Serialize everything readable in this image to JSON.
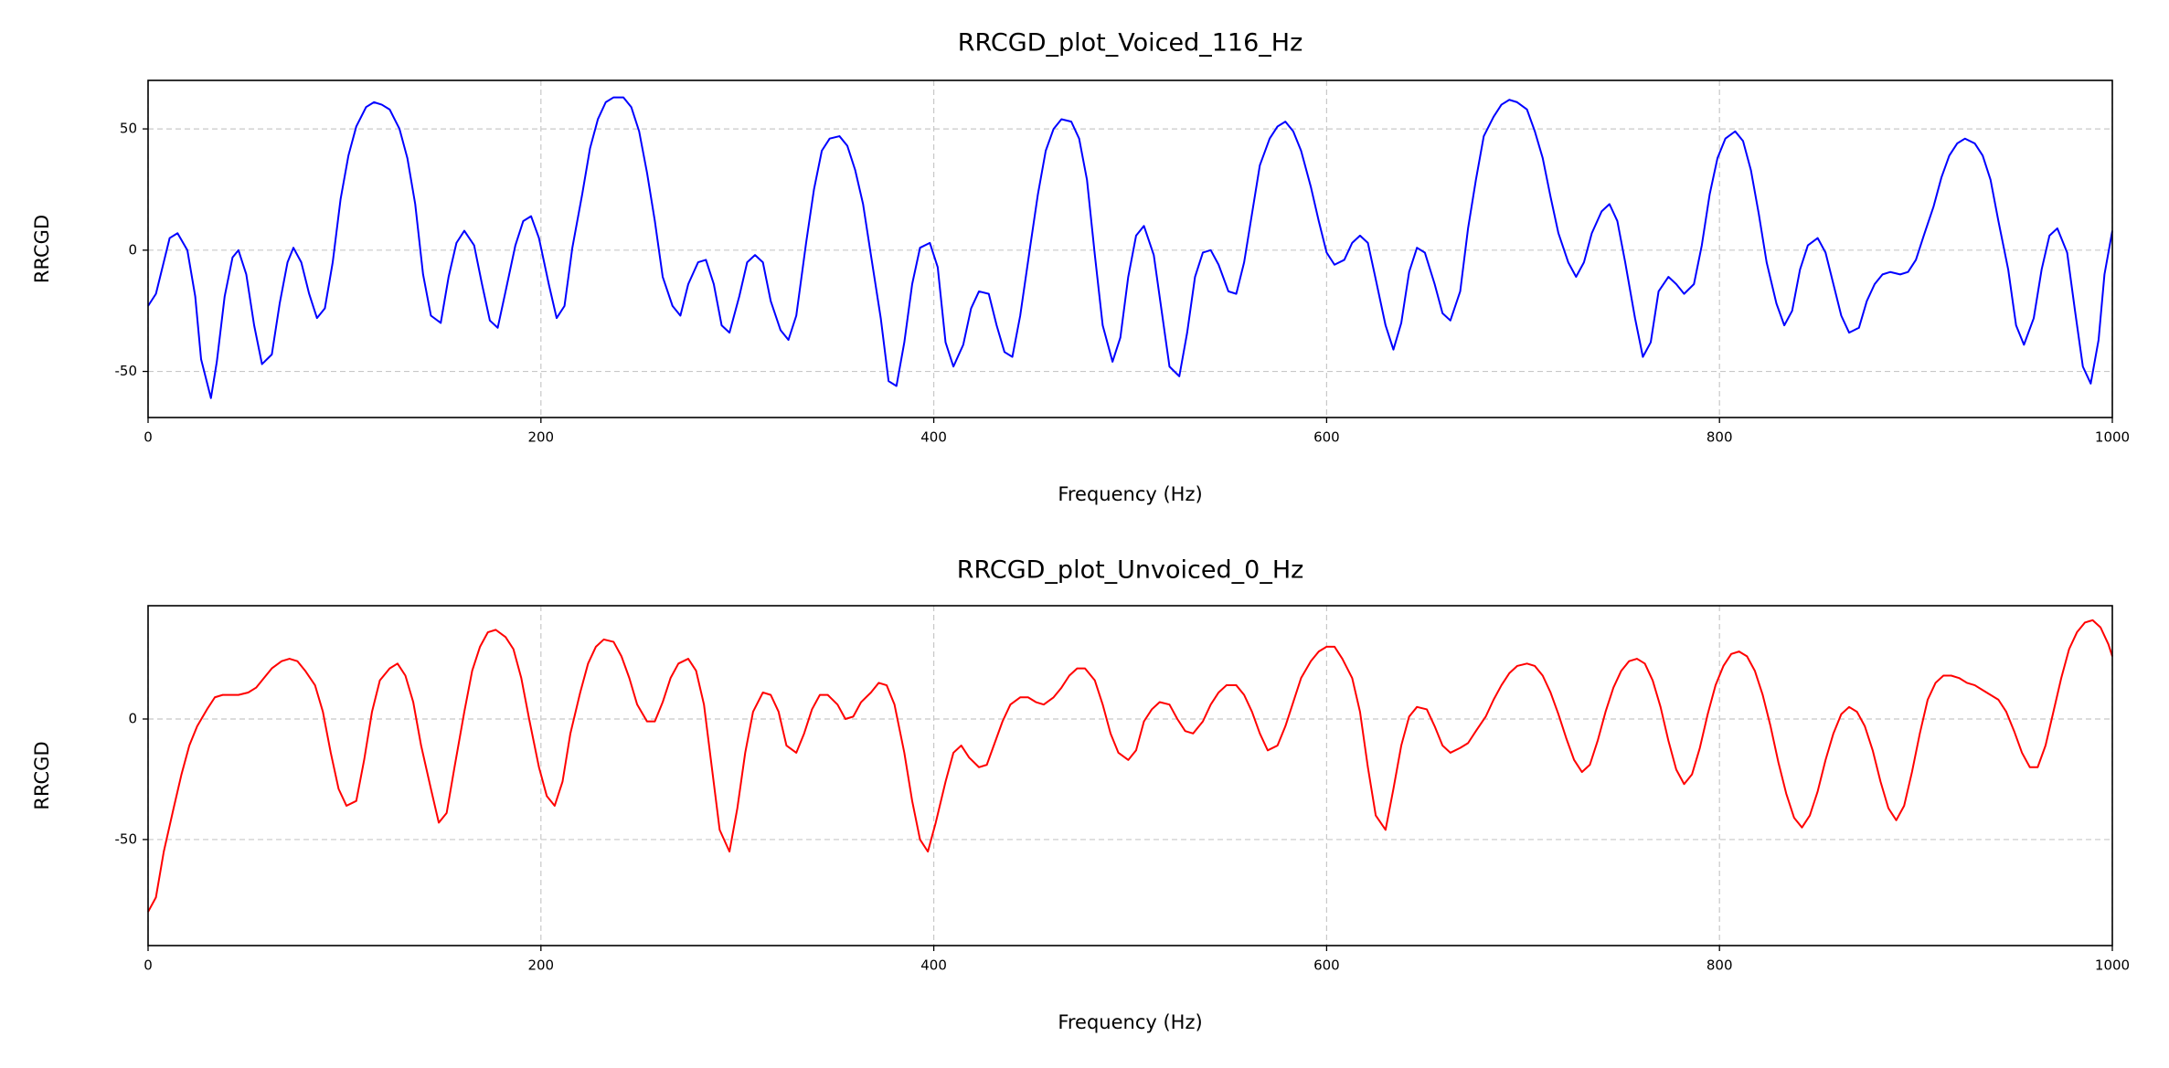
{
  "chart_data": [
    {
      "type": "line",
      "title": "RRCGD_plot_Voiced_116_Hz",
      "xlabel": "Frequency (Hz)",
      "ylabel": "RRCGD",
      "color": "#0000ff",
      "grid": true,
      "xlim": [
        0,
        1000
      ],
      "ylim": [
        -69,
        70
      ],
      "xticks": [
        0,
        200,
        400,
        600,
        800,
        1000
      ],
      "yticks": [
        -50,
        0,
        50
      ],
      "x": [
        0,
        4,
        11,
        15,
        20,
        24,
        27,
        32,
        35,
        39,
        43,
        46,
        50,
        54,
        58,
        63,
        67,
        71,
        74,
        78,
        82,
        86,
        90,
        94,
        98,
        102,
        106,
        111,
        115,
        119,
        123,
        128,
        132,
        136,
        140,
        144,
        149,
        153,
        157,
        161,
        166,
        170,
        174,
        178,
        182,
        187,
        191,
        195,
        199,
        204,
        208,
        212,
        216,
        221,
        225,
        229,
        233,
        237,
        242,
        246,
        250,
        254,
        258,
        262,
        267,
        271,
        275,
        280,
        284,
        288,
        292,
        296,
        301,
        305,
        309,
        313,
        317,
        322,
        326,
        330,
        335,
        339,
        343,
        347,
        352,
        356,
        360,
        364,
        368,
        373,
        377,
        381,
        385,
        389,
        393,
        398,
        402,
        406,
        410,
        415,
        419,
        423,
        428,
        432,
        436,
        440,
        444,
        449,
        453,
        457,
        461,
        465,
        470,
        474,
        478,
        482,
        486,
        491,
        495,
        499,
        503,
        507,
        512,
        516,
        520,
        525,
        529,
        533,
        537,
        541,
        545,
        550,
        554,
        558,
        562,
        566,
        571,
        575,
        579,
        583,
        587,
        592,
        596,
        600,
        604,
        609,
        613,
        617,
        621,
        625,
        630,
        634,
        638,
        642,
        646,
        650,
        655,
        659,
        663,
        668,
        672,
        676,
        680,
        685,
        689,
        693,
        697,
        702,
        706,
        710,
        714,
        718,
        723,
        727,
        731,
        735,
        740,
        744,
        748,
        752,
        757,
        761,
        765,
        769,
        774,
        778,
        782,
        787,
        791,
        795,
        799,
        803,
        808,
        812,
        816,
        820,
        824,
        829,
        833,
        837,
        841,
        845,
        850,
        854,
        858,
        862,
        866,
        871,
        875,
        879,
        883,
        887,
        892,
        896,
        900,
        904,
        909,
        913,
        917,
        921,
        925,
        930,
        934,
        938,
        942,
        947,
        951,
        955,
        960,
        964,
        968,
        972,
        977,
        981,
        985,
        989,
        993,
        996,
        1000
      ],
      "values": [
        -23,
        -18,
        5,
        7,
        0,
        -19,
        -45,
        -61,
        -46,
        -19,
        -3,
        0,
        -10,
        -31,
        -47,
        -43,
        -22,
        -5,
        1,
        -5,
        -18,
        -28,
        -24,
        -5,
        21,
        39,
        51,
        59,
        61,
        60,
        58,
        50,
        38,
        19,
        -10,
        -27,
        -30,
        -11,
        3,
        8,
        2,
        -14,
        -29,
        -32,
        -17,
        2,
        12,
        14,
        5,
        -14,
        -28,
        -23,
        1,
        23,
        42,
        54,
        61,
        63,
        63,
        59,
        49,
        32,
        12,
        -11,
        -23,
        -27,
        -14,
        -5,
        -4,
        -14,
        -31,
        -34,
        -19,
        -5,
        -2,
        -5,
        -21,
        -33,
        -37,
        -27,
        3,
        25,
        41,
        46,
        47,
        43,
        33,
        19,
        -2,
        -28,
        -54,
        -56,
        -38,
        -14,
        1,
        3,
        -7,
        -38,
        -48,
        -39,
        -24,
        -17,
        -18,
        -31,
        -42,
        -44,
        -27,
        1,
        23,
        41,
        50,
        54,
        53,
        46,
        29,
        -2,
        -31,
        -46,
        -36,
        -11,
        6,
        10,
        -2,
        -25,
        -48,
        -52,
        -34,
        -11,
        -1,
        0,
        -6,
        -17,
        -18,
        -5,
        15,
        35,
        46,
        51,
        53,
        49,
        41,
        26,
        12,
        -1,
        -6,
        -4,
        3,
        6,
        3,
        -12,
        -31,
        -41,
        -30,
        -9,
        1,
        -1,
        -14,
        -26,
        -29,
        -17,
        9,
        29,
        47,
        55,
        60,
        62,
        61,
        58,
        49,
        38,
        22,
        7,
        -5,
        -11,
        -5,
        7,
        16,
        19,
        12,
        -5,
        -28,
        -44,
        -38,
        -17,
        -11,
        -14,
        -18,
        -14,
        2,
        23,
        38,
        46,
        49,
        45,
        33,
        15,
        -5,
        -22,
        -31,
        -25,
        -8,
        2,
        5,
        -1,
        -14,
        -27,
        -34,
        -32,
        -21,
        -14,
        -10,
        -9,
        -10,
        -9,
        -4,
        6,
        18,
        30,
        39,
        44,
        46,
        44,
        39,
        29,
        12,
        -8,
        -31,
        -39,
        -28,
        -8,
        6,
        9,
        -1,
        -25,
        -48,
        -55,
        -37,
        -10,
        8
      ]
    },
    {
      "type": "line",
      "title": "RRCGD_plot_Unvoiced_0_Hz",
      "xlabel": "Frequency (Hz)",
      "ylabel": "RRCGD",
      "color": "#ff0000",
      "grid": true,
      "xlim": [
        0,
        1000
      ],
      "ylim": [
        -94,
        47
      ],
      "xticks": [
        0,
        200,
        400,
        600,
        800,
        1000
      ],
      "yticks": [
        -50,
        0
      ],
      "x": [
        0,
        4,
        8,
        13,
        17,
        21,
        25,
        30,
        34,
        38,
        42,
        46,
        51,
        55,
        59,
        63,
        68,
        72,
        76,
        80,
        85,
        89,
        93,
        97,
        101,
        106,
        110,
        114,
        118,
        123,
        127,
        131,
        135,
        139,
        144,
        148,
        152,
        156,
        161,
        165,
        169,
        173,
        177,
        182,
        186,
        190,
        194,
        199,
        203,
        207,
        211,
        215,
        220,
        224,
        228,
        232,
        237,
        241,
        245,
        249,
        254,
        258,
        262,
        266,
        270,
        275,
        279,
        283,
        287,
        291,
        296,
        300,
        304,
        308,
        313,
        317,
        321,
        325,
        330,
        334,
        338,
        342,
        346,
        351,
        355,
        359,
        363,
        368,
        372,
        376,
        380,
        385,
        389,
        393,
        397,
        401,
        406,
        410,
        414,
        418,
        423,
        427,
        431,
        435,
        439,
        444,
        448,
        452,
        456,
        461,
        465,
        469,
        473,
        477,
        482,
        486,
        490,
        494,
        499,
        503,
        507,
        511,
        515,
        520,
        524,
        528,
        532,
        537,
        541,
        545,
        549,
        554,
        558,
        562,
        566,
        570,
        575,
        579,
        583,
        587,
        592,
        596,
        600,
        604,
        608,
        613,
        617,
        621,
        625,
        630,
        634,
        638,
        642,
        646,
        651,
        655,
        659,
        663,
        668,
        672,
        676,
        681,
        685,
        689,
        693,
        697,
        702,
        706,
        710,
        714,
        718,
        722,
        726,
        730,
        734,
        738,
        742,
        746,
        750,
        754,
        758,
        762,
        766,
        770,
        774,
        778,
        782,
        786,
        790,
        794,
        798,
        802,
        806,
        810,
        814,
        818,
        822,
        826,
        830,
        834,
        838,
        842,
        846,
        850,
        854,
        858,
        862,
        866,
        870,
        874,
        878,
        882,
        886,
        890,
        894,
        898,
        902,
        906,
        910,
        914,
        918,
        922,
        926,
        930,
        934,
        938,
        942,
        946,
        950,
        954,
        958,
        962,
        966,
        970,
        974,
        978,
        982,
        986,
        990,
        994,
        998,
        1000
      ],
      "values": [
        -80,
        -74,
        -55,
        -37,
        -23,
        -11,
        -3,
        4,
        9,
        10,
        10,
        10,
        11,
        13,
        17,
        21,
        24,
        25,
        24,
        20,
        14,
        3,
        -14,
        -29,
        -36,
        -34,
        -17,
        3,
        16,
        21,
        23,
        18,
        7,
        -11,
        -29,
        -43,
        -39,
        -20,
        3,
        20,
        30,
        36,
        37,
        34,
        29,
        17,
        0,
        -20,
        -32,
        -36,
        -26,
        -6,
        11,
        23,
        30,
        33,
        32,
        26,
        17,
        6,
        -1,
        -1,
        7,
        17,
        23,
        25,
        20,
        6,
        -20,
        -46,
        -55,
        -37,
        -14,
        3,
        11,
        10,
        3,
        -11,
        -14,
        -6,
        4,
        10,
        10,
        6,
        0,
        1,
        7,
        11,
        15,
        14,
        6,
        -14,
        -34,
        -50,
        -55,
        -43,
        -26,
        -14,
        -11,
        -16,
        -20,
        -19,
        -10,
        -1,
        6,
        9,
        9,
        7,
        6,
        9,
        13,
        18,
        21,
        21,
        16,
        6,
        -6,
        -14,
        -17,
        -13,
        -1,
        4,
        7,
        6,
        0,
        -5,
        -6,
        -1,
        6,
        11,
        14,
        14,
        10,
        3,
        -6,
        -13,
        -11,
        -3,
        7,
        17,
        24,
        28,
        30,
        30,
        25,
        17,
        3,
        -20,
        -40,
        -46,
        -29,
        -11,
        1,
        5,
        4,
        -3,
        -11,
        -14,
        -12,
        -10,
        -5,
        1,
        8,
        14,
        19,
        22,
        23,
        22,
        18,
        11,
        2,
        -8,
        -17,
        -22,
        -19,
        -9,
        3,
        13,
        20,
        24,
        25,
        23,
        16,
        5,
        -9,
        -21,
        -27,
        -23,
        -12,
        2,
        14,
        22,
        27,
        28,
        26,
        20,
        10,
        -3,
        -18,
        -31,
        -41,
        -45,
        -40,
        -30,
        -17,
        -6,
        2,
        5,
        3,
        -3,
        -13,
        -26,
        -37,
        -42,
        -36,
        -22,
        -6,
        8,
        15,
        18,
        18,
        17,
        15,
        14,
        12,
        10,
        8,
        3,
        -5,
        -14,
        -20,
        -20,
        -11,
        3,
        17,
        29,
        36,
        40,
        41,
        38,
        31,
        26
      ]
    }
  ]
}
